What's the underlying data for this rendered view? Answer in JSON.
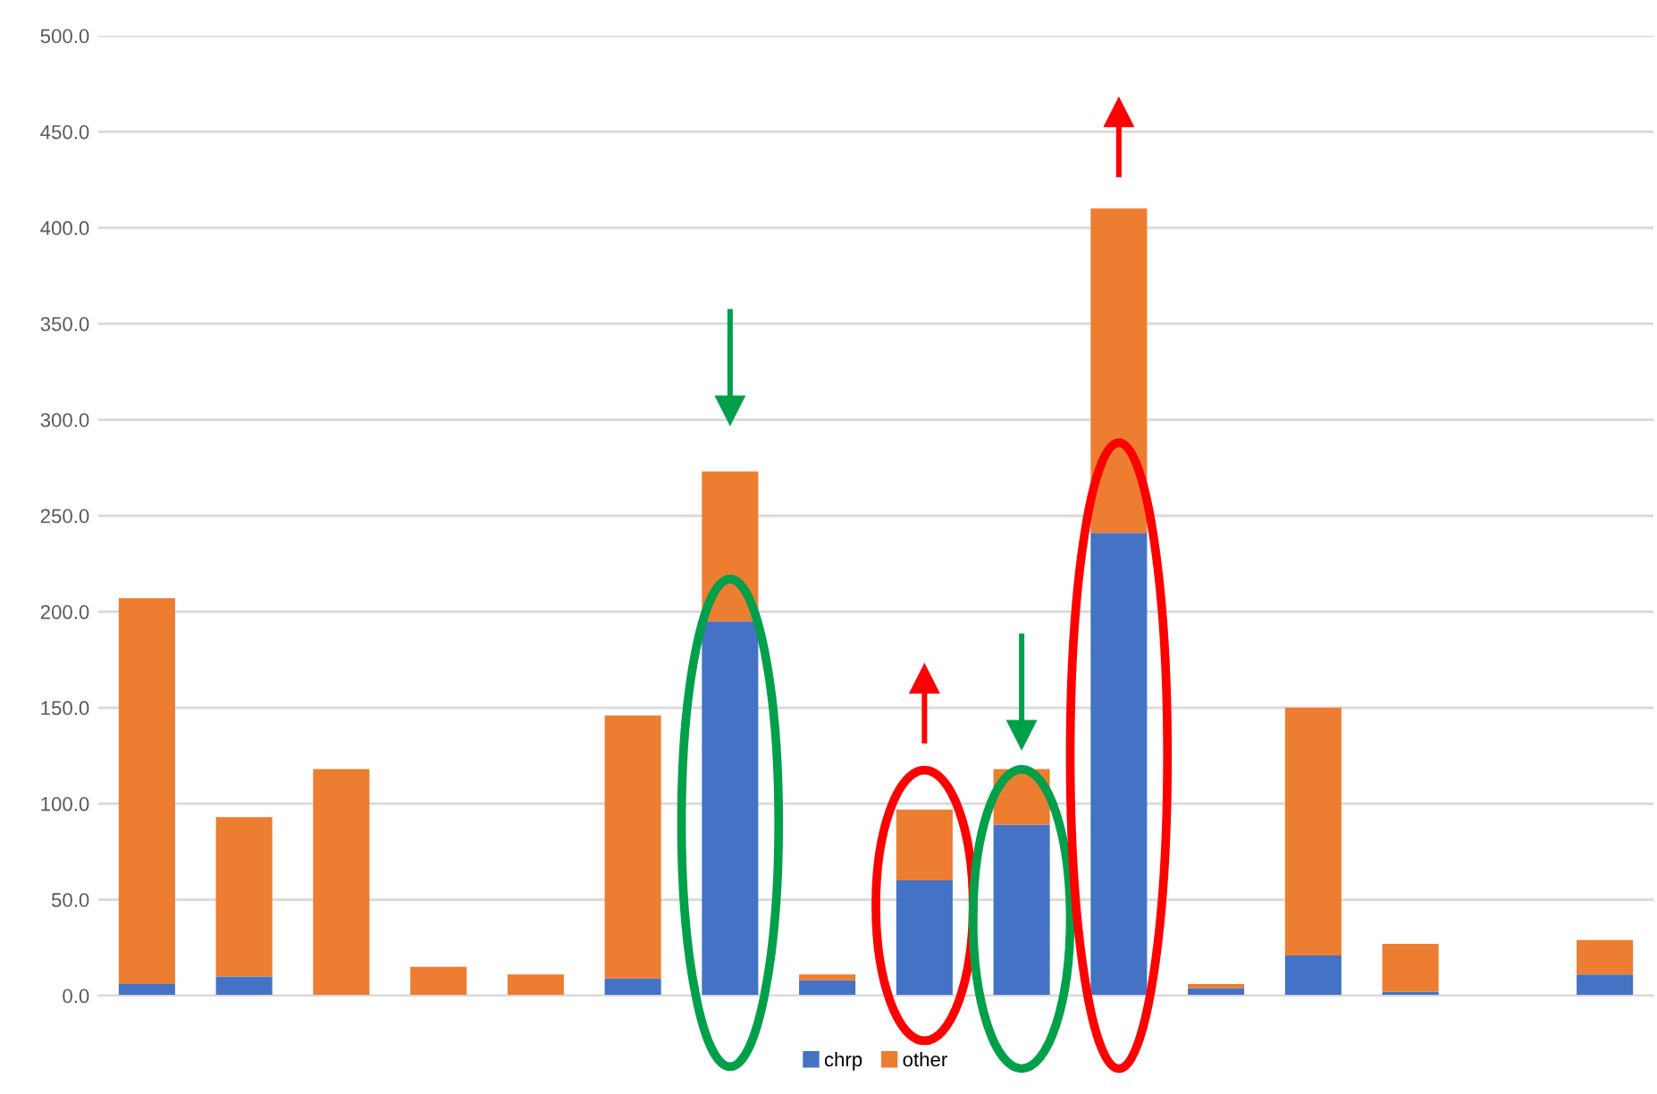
{
  "chart_data": {
    "type": "bar",
    "stacked": true,
    "categories": [
      null,
      null,
      null,
      null,
      null,
      null,
      null,
      null,
      null,
      null,
      null,
      null,
      null,
      null,
      null,
      null
    ],
    "series": [
      {
        "name": "chrp",
        "color": "#4472c4",
        "values": [
          6,
          10,
          0,
          0,
          0,
          9,
          195,
          8,
          60,
          89,
          241,
          4,
          21,
          2,
          0,
          11
        ]
      },
      {
        "name": "other",
        "color": "#ed7d31",
        "values": [
          201,
          83,
          118,
          15,
          11,
          137,
          78,
          3,
          37,
          29,
          169,
          2,
          129,
          25,
          0,
          18
        ]
      }
    ],
    "ylim": [
      0,
      500
    ],
    "yticks": [
      {
        "value": 0,
        "label": "0.0"
      },
      {
        "value": 50,
        "label": "50.0"
      },
      {
        "value": 100,
        "label": "100.0"
      },
      {
        "value": 150,
        "label": "150.0"
      },
      {
        "value": 200,
        "label": "200.0"
      },
      {
        "value": 250,
        "label": "250.0"
      },
      {
        "value": 300,
        "label": "300.0"
      },
      {
        "value": 350,
        "label": "350.0"
      },
      {
        "value": 400,
        "label": "400.0"
      },
      {
        "value": 450,
        "label": "450.0"
      },
      {
        "value": 500,
        "label": "500.0"
      }
    ],
    "grid": "y",
    "legend": "bottom"
  }
}
